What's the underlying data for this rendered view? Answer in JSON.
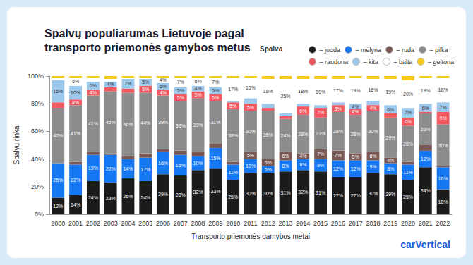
{
  "chart_data": {
    "type": "bar",
    "stacked": true,
    "title": "Spalvų populiarumas Lietuvoje pagal transporto priemonės gamybos metus",
    "legend_title": "Spalva",
    "logo": "carVertical",
    "x_label": "Transporto priemonės gamybos metai",
    "y_label": "Spalvų rinka",
    "legend": "top-right",
    "grid": false,
    "data_labels": true,
    "categories": [
      "2000",
      "2001",
      "2002",
      "2003",
      "2004",
      "2005",
      "2006",
      "2007",
      "2008",
      "2009",
      "2010",
      "2011",
      "2012",
      "2013",
      "2014",
      "2015",
      "2016",
      "2017",
      "2018",
      "2019",
      "2020",
      "2021",
      "2022"
    ],
    "ylim": [
      0,
      100
    ],
    "yticks": [
      {
        "value": 0,
        "label": "0%"
      },
      {
        "value": 20,
        "label": "20%"
      },
      {
        "value": 40,
        "label": "40%"
      },
      {
        "value": 60,
        "label": "60%"
      },
      {
        "value": 80,
        "label": "80%"
      },
      {
        "value": 100,
        "label": "100%"
      }
    ],
    "series": [
      {
        "name": "– juoda",
        "color": "#1b1b1b",
        "values": [
          12,
          14,
          24,
          23,
          26,
          24,
          29,
          28,
          32,
          33,
          25,
          30,
          30,
          31,
          32,
          31,
          27,
          27,
          30,
          29,
          25,
          34,
          18
        ],
        "value_labels": [
          "12%",
          "14%",
          "24%",
          "23%",
          "26%",
          "24%",
          "29%",
          "28%",
          "32%",
          "33%",
          "25%",
          "30%",
          "30%",
          "31%",
          "32%",
          "31%",
          "27%",
          "27%",
          "30%",
          "29%",
          "25%",
          "34%",
          "18%"
        ]
      },
      {
        "name": "– mėlyna",
        "color": "#1677f2",
        "values": [
          25,
          22,
          19,
          20,
          14,
          17,
          16,
          15,
          10,
          15,
          11,
          10,
          5,
          8,
          8,
          9,
          12,
          12,
          9,
          8,
          11,
          12,
          16
        ],
        "value_labels": [
          "25%",
          "22%",
          "19%",
          "20%",
          "14%",
          "17%",
          "16%",
          "15%",
          "10%",
          "15%",
          "11%",
          "10%",
          "5%",
          "8%",
          "8%",
          "9%",
          "12%",
          "12%",
          "9%",
          "8%",
          "11%",
          "12%",
          "16%"
        ]
      },
      {
        "name": "– ruda",
        "color": "#7a5954",
        "values": [
          0,
          2,
          2,
          1,
          2,
          3,
          2,
          3,
          3,
          3,
          2,
          5,
          5,
          6,
          4,
          7,
          7,
          5,
          6,
          4,
          2,
          4,
          1
        ],
        "value_labels": [
          null,
          null,
          null,
          null,
          null,
          null,
          null,
          null,
          null,
          null,
          null,
          "5%",
          "5%",
          "6%",
          "4%",
          "7%",
          "7%",
          "5%",
          "6%",
          "4%",
          null,
          null,
          null
        ]
      },
      {
        "name": "– pilka",
        "color": "#8c8c8c",
        "values": [
          40,
          41,
          41,
          45,
          46,
          44,
          39,
          36,
          39,
          31,
          38,
          30,
          35,
          24,
          28,
          23,
          28,
          28,
          30,
          29,
          26,
          23,
          30
        ],
        "value_labels": [
          "40%",
          "41%",
          "41%",
          "45%",
          "46%",
          "44%",
          "39%",
          "36%",
          "39%",
          "31%",
          "38%",
          "30%",
          "35%",
          "24%",
          "28%",
          "23%",
          "28%",
          "28%",
          "30%",
          "29%",
          "26%",
          "23%",
          "30%"
        ]
      },
      {
        "name": "– raudona",
        "color": "#f2585f",
        "values": [
          4,
          4,
          4,
          3,
          3,
          5,
          4,
          5,
          5,
          5,
          5,
          5,
          2,
          2,
          6,
          7,
          5,
          4,
          4,
          3,
          6,
          1,
          9
        ],
        "value_labels": [
          null,
          "4%",
          "4%",
          null,
          null,
          "5%",
          "4%",
          "5%",
          "5%",
          "5%",
          "5%",
          "5%",
          null,
          null,
          "6%",
          "7%",
          "5%",
          "4%",
          "4%",
          null,
          "6%",
          null,
          "9%"
        ]
      },
      {
        "name": "– kita",
        "color": "#9cc8ec",
        "values": [
          16,
          10,
          6,
          4,
          7,
          5,
          5,
          5,
          4,
          5,
          1,
          4,
          3,
          2,
          2,
          2,
          2,
          4,
          3,
          6,
          7,
          6,
          7
        ],
        "value_labels": [
          "16%",
          "10%",
          "6%",
          "4%",
          "7%",
          "5%",
          "5%",
          "5%",
          "4%",
          "5%",
          null,
          null,
          null,
          null,
          null,
          null,
          null,
          "4%",
          null,
          "6%",
          "7%",
          "6%",
          "7%"
        ]
      },
      {
        "name": "– balta",
        "color": "#ffffff",
        "values": [
          2,
          6,
          3,
          2,
          1,
          1,
          4,
          7,
          6,
          7,
          17,
          15,
          18,
          25,
          18,
          19,
          17,
          19,
          16,
          19,
          20,
          19,
          18
        ],
        "value_labels": [
          null,
          "6%",
          null,
          null,
          null,
          null,
          "4%",
          "7%",
          "6%",
          "7%",
          "17%",
          "15%",
          "18%",
          "25%",
          "18%",
          "19%",
          "17%",
          "19%",
          "16%",
          "19%",
          "20%",
          "19%",
          "18%"
        ]
      },
      {
        "name": "– geltona",
        "color": "#f8c81d",
        "values": [
          1,
          1,
          1,
          2,
          1,
          1,
          1,
          1,
          1,
          1,
          1,
          1,
          2,
          2,
          2,
          2,
          2,
          1,
          2,
          2,
          3,
          1,
          1
        ],
        "value_labels": [
          null,
          null,
          null,
          null,
          null,
          null,
          null,
          null,
          null,
          null,
          null,
          null,
          null,
          null,
          null,
          null,
          null,
          null,
          null,
          null,
          null,
          null,
          null
        ]
      }
    ]
  }
}
